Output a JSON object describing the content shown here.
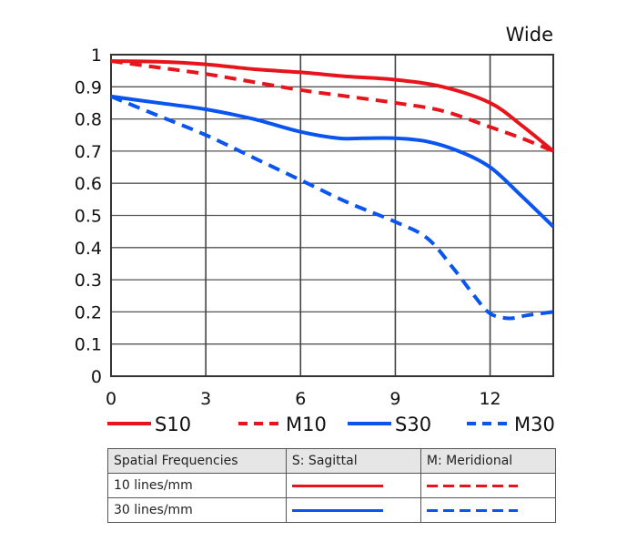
{
  "chart_data": {
    "type": "line",
    "title": "Wide",
    "xlabel": "",
    "ylabel": "",
    "xlim": [
      0,
      14
    ],
    "ylim": [
      0,
      1
    ],
    "xticks": [
      0,
      3,
      6,
      9,
      12
    ],
    "yticks": [
      "0",
      "0.1",
      "0.2",
      "0.3",
      "0.4",
      "0.5",
      "0.6",
      "0.7",
      "0.8",
      "0.9",
      "1"
    ],
    "grid": true,
    "legend_position": "bottom",
    "series": [
      {
        "name": "S10",
        "color": "#e8141c",
        "style": "solid",
        "x": [
          0,
          1.5,
          3,
          4.5,
          6,
          7.5,
          9,
          10.5,
          12,
          13,
          14
        ],
        "y": [
          0.98,
          0.978,
          0.97,
          0.955,
          0.945,
          0.932,
          0.922,
          0.9,
          0.85,
          0.78,
          0.7
        ]
      },
      {
        "name": "M10",
        "color": "#e8141c",
        "style": "dashed",
        "x": [
          0,
          1.5,
          3,
          4.5,
          6,
          7.5,
          9,
          10.5,
          12,
          13,
          14
        ],
        "y": [
          0.98,
          0.96,
          0.94,
          0.915,
          0.89,
          0.87,
          0.85,
          0.825,
          0.775,
          0.74,
          0.7
        ]
      },
      {
        "name": "S30",
        "color": "#0a54f0",
        "style": "solid",
        "x": [
          0,
          1.5,
          3,
          4.5,
          6,
          7.2,
          8,
          9,
          10,
          11,
          12,
          13,
          14
        ],
        "y": [
          0.87,
          0.85,
          0.83,
          0.8,
          0.76,
          0.74,
          0.74,
          0.74,
          0.73,
          0.7,
          0.65,
          0.56,
          0.465
        ]
      },
      {
        "name": "M30",
        "color": "#0a54f0",
        "style": "dashed",
        "x": [
          0,
          1.5,
          3,
          4.5,
          6,
          7.5,
          9,
          10,
          10.8,
          11.5,
          12,
          12.6,
          13.2,
          14
        ],
        "y": [
          0.87,
          0.81,
          0.75,
          0.68,
          0.61,
          0.54,
          0.48,
          0.43,
          0.34,
          0.25,
          0.195,
          0.18,
          0.19,
          0.2
        ]
      }
    ]
  },
  "table": {
    "headers": [
      "Spatial Frequencies",
      "S: Sagittal",
      "M: Meridional"
    ],
    "rows": [
      "10 lines/mm",
      "30 lines/mm"
    ]
  }
}
